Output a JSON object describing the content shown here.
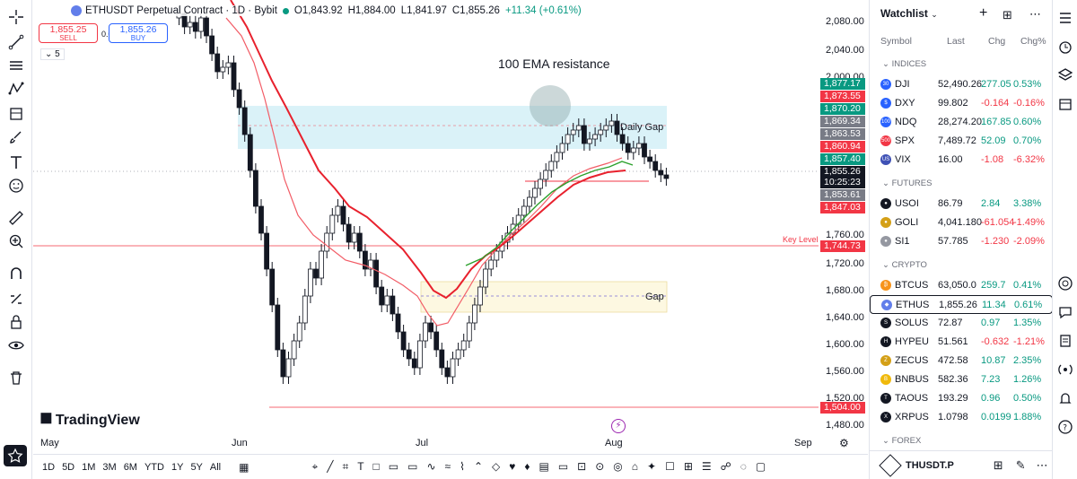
{
  "symbol": {
    "title": "ETHUSDT Perpetual Contract · 1D · Bybit",
    "open": "O1,843.92",
    "high": "H1,884.00",
    "low": "L1,841.97",
    "close": "C1,855.26",
    "change": "+11.34 (+0.61%)",
    "sell_price": "1,855.25",
    "sell_label": "SELL",
    "spread": "0.01",
    "buy_price": "1,855.26",
    "buy_label": "BUY",
    "indicator_count": "5"
  },
  "annotations": {
    "ema_text": "100 EMA resistance",
    "daily_gap": "Daily Gap",
    "gap": "Gap",
    "key_level": "Key Level"
  },
  "price_scale": {
    "labels": [
      "2,080.00",
      "2,040.00",
      "2,000.00",
      "1,760.00",
      "1,720.00",
      "1,680.00",
      "1,640.00",
      "1,600.00",
      "1,560.00",
      "1,520.00",
      "1,480.00"
    ],
    "badges": [
      {
        "text": "1,877.17",
        "color": "#089981"
      },
      {
        "text": "1,873.55",
        "color": "#f23645"
      },
      {
        "text": "1,870.20",
        "color": "#089981"
      },
      {
        "text": "1,869.34",
        "color": "#787b86"
      },
      {
        "text": "1,863.53",
        "color": "#787b86"
      },
      {
        "text": "1,860.94",
        "color": "#f23645"
      },
      {
        "text": "1,857.40",
        "color": "#089981"
      },
      {
        "text": "1,855.26",
        "color": "#131722"
      },
      {
        "text": "10:25:23",
        "color": "#131722"
      },
      {
        "text": "1,853.61",
        "color": "#787b86"
      },
      {
        "text": "1,847.03",
        "color": "#f23645"
      },
      {
        "text": "1,744.73",
        "color": "#f23645"
      },
      {
        "text": "1,504.00",
        "color": "#f23645"
      }
    ]
  },
  "time_axis": [
    "May",
    "Jun",
    "Jul",
    "Aug",
    "Sep"
  ],
  "ranges": [
    "1D",
    "5D",
    "1M",
    "3M",
    "6M",
    "YTD",
    "1Y",
    "5Y",
    "All"
  ],
  "logo": "TradingView",
  "watchlist": {
    "title": "Watchlist",
    "columns": {
      "symbol": "Symbol",
      "last": "Last",
      "chg": "Chg",
      "chgp": "Chg%"
    },
    "sections": [
      {
        "name": "INDICES",
        "rows": [
          {
            "icon": "30",
            "icon_color": "#2962ff",
            "sym": "DJI",
            "last": "52,490.26",
            "chg": "277.05",
            "chgp": "0.53%",
            "dir": "pos"
          },
          {
            "icon": "$",
            "icon_color": "#2962ff",
            "sym": "DXY",
            "last": "99.802",
            "chg": "-0.164",
            "chgp": "-0.16%",
            "dir": "neg"
          },
          {
            "icon": "100",
            "icon_color": "#2962ff",
            "sym": "NDQ",
            "last": "28,274.20",
            "chg": "167.85",
            "chgp": "0.60%",
            "dir": "pos"
          },
          {
            "icon": "500",
            "icon_color": "#f23645",
            "sym": "SPX",
            "last": "7,489.72",
            "chg": "52.09",
            "chgp": "0.70%",
            "dir": "pos"
          },
          {
            "icon": "US",
            "icon_color": "#3f51b5",
            "sym": "VIX",
            "last": "16.00",
            "chg": "-1.08",
            "chgp": "-6.32%",
            "dir": "neg"
          }
        ]
      },
      {
        "name": "FUTURES",
        "rows": [
          {
            "icon": "●",
            "icon_color": "#131722",
            "sym": "USOI",
            "last": "86.79",
            "chg": "2.84",
            "chgp": "3.38%",
            "dir": "pos"
          },
          {
            "icon": "●",
            "icon_color": "#d4a017",
            "sym": "GOLI",
            "last": "4,041.180",
            "chg": "-61.054",
            "chgp": "-1.49%",
            "dir": "neg"
          },
          {
            "icon": "●",
            "icon_color": "#9598a1",
            "sym": "SI1",
            "last": "57.785",
            "chg": "-1.230",
            "chgp": "-2.09%",
            "dir": "neg"
          }
        ]
      },
      {
        "name": "CRYPTO",
        "rows": [
          {
            "icon": "₿",
            "icon_color": "#f7931a",
            "sym": "BTCUS",
            "last": "63,050.0",
            "chg": "259.7",
            "chgp": "0.41%",
            "dir": "pos"
          },
          {
            "icon": "◆",
            "icon_color": "#627eea",
            "sym": "ETHUS",
            "last": "1,855.26",
            "chg": "11.34",
            "chgp": "0.61%",
            "dir": "pos",
            "selected": true
          },
          {
            "icon": "S",
            "icon_color": "#131722",
            "sym": "SOLUS",
            "last": "72.87",
            "chg": "0.97",
            "chgp": "1.35%",
            "dir": "pos"
          },
          {
            "icon": "H",
            "icon_color": "#131722",
            "sym": "HYPEU",
            "last": "51.561",
            "chg": "-0.632",
            "chgp": "-1.21%",
            "dir": "neg"
          },
          {
            "icon": "Z",
            "icon_color": "#d4a017",
            "sym": "ZECUS",
            "last": "472.58",
            "chg": "10.87",
            "chgp": "2.35%",
            "dir": "pos"
          },
          {
            "icon": "B",
            "icon_color": "#f0b90b",
            "sym": "BNBUS",
            "last": "582.36",
            "chg": "7.23",
            "chgp": "1.26%",
            "dir": "pos"
          },
          {
            "icon": "T",
            "icon_color": "#131722",
            "sym": "TAOUS",
            "last": "193.29",
            "chg": "0.96",
            "chgp": "0.50%",
            "dir": "pos"
          },
          {
            "icon": "X",
            "icon_color": "#131722",
            "sym": "XRPUS",
            "last": "1.0798",
            "chg": "0.0199",
            "chgp": "1.88%",
            "dir": "pos"
          }
        ]
      },
      {
        "name": "FOREX",
        "rows": []
      }
    ]
  },
  "footer_symbol": "THUSDT.P",
  "colors": {
    "up": "#089981",
    "down": "#f23645",
    "ema_red": "#e8212d",
    "ema_green": "#2ca02c"
  }
}
